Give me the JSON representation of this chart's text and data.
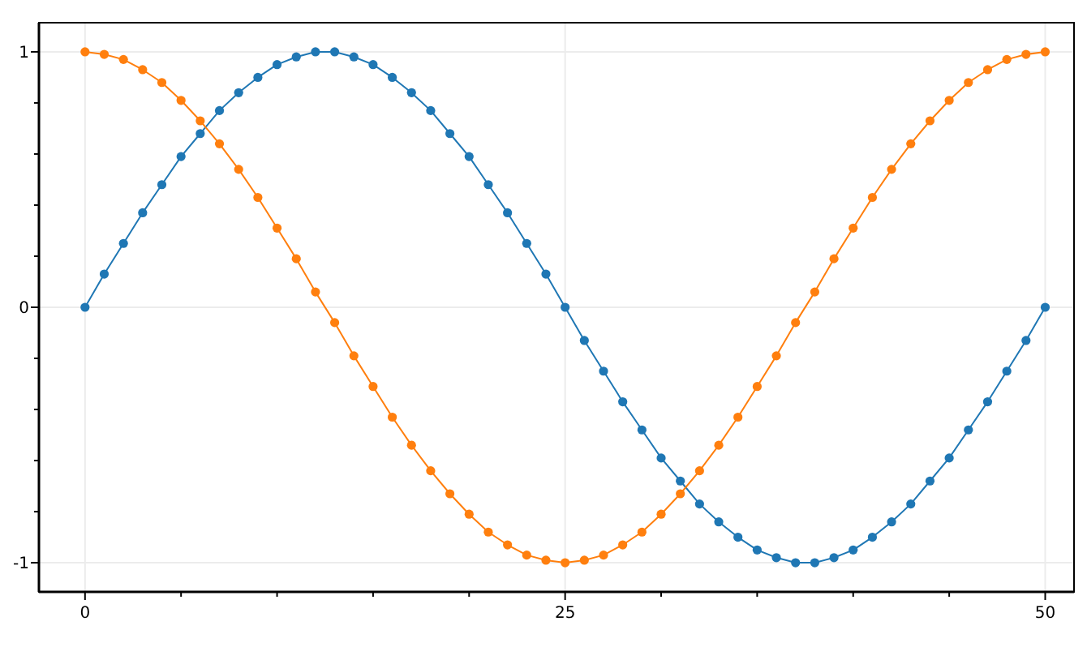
{
  "chart_data": {
    "type": "line",
    "x": [
      0,
      1,
      2,
      3,
      4,
      5,
      6,
      7,
      8,
      9,
      10,
      11,
      12,
      13,
      14,
      15,
      16,
      17,
      18,
      19,
      20,
      21,
      22,
      23,
      24,
      25,
      26,
      27,
      28,
      29,
      30,
      31,
      32,
      33,
      34,
      35,
      36,
      37,
      38,
      39,
      40,
      41,
      42,
      43,
      44,
      45,
      46,
      47,
      48,
      49,
      50
    ],
    "series": [
      {
        "color": "#1f77b4",
        "values": [
          0,
          0.13,
          0.25,
          0.37,
          0.48,
          0.59,
          0.68,
          0.77,
          0.84,
          0.9,
          0.95,
          0.98,
          1,
          1,
          0.98,
          0.95,
          0.9,
          0.84,
          0.77,
          0.68,
          0.59,
          0.48,
          0.37,
          0.25,
          0.13,
          0,
          -0.13,
          -0.25,
          -0.37,
          -0.48,
          -0.59,
          -0.68,
          -0.77,
          -0.84,
          -0.9,
          -0.95,
          -0.98,
          -1,
          -1,
          -0.98,
          -0.95,
          -0.9,
          -0.84,
          -0.77,
          -0.68,
          -0.59,
          -0.48,
          -0.37,
          -0.25,
          -0.13,
          0
        ]
      },
      {
        "color": "#ff7f0e",
        "values": [
          1,
          0.99,
          0.97,
          0.93,
          0.88,
          0.81,
          0.73,
          0.64,
          0.54,
          0.43,
          0.31,
          0.19,
          0.06,
          -0.06,
          -0.19,
          -0.31,
          -0.43,
          -0.54,
          -0.64,
          -0.73,
          -0.81,
          -0.88,
          -0.93,
          -0.97,
          -0.99,
          -1,
          -0.99,
          -0.97,
          -0.93,
          -0.88,
          -0.81,
          -0.73,
          -0.64,
          -0.54,
          -0.43,
          -0.31,
          -0.19,
          -0.06,
          0.06,
          0.19,
          0.31,
          0.43,
          0.54,
          0.64,
          0.73,
          0.81,
          0.88,
          0.93,
          0.97,
          0.99,
          1
        ]
      }
    ],
    "xlim": [
      -2.4,
      51.5
    ],
    "ylim": [
      -1.114,
      1.114
    ],
    "xticks": [
      0,
      {
        "value": 5,
        "label": null
      },
      {
        "value": 10,
        "label": null
      },
      {
        "value": 15,
        "label": null
      },
      {
        "value": 20,
        "label": null
      },
      25,
      {
        "value": 30,
        "label": null
      },
      {
        "value": 35,
        "label": null
      },
      {
        "value": 40,
        "label": null
      },
      {
        "value": 45,
        "label": null
      },
      50
    ],
    "yticks": [
      -1,
      {
        "value": -0.8,
        "label": null
      },
      {
        "value": -0.6,
        "label": null
      },
      {
        "value": -0.4,
        "label": null
      },
      {
        "value": -0.2,
        "label": null
      },
      0,
      {
        "value": 0.2,
        "label": null
      },
      {
        "value": 0.4,
        "label": null
      },
      {
        "value": 0.6,
        "label": null
      },
      {
        "value": 0.8,
        "label": null
      },
      1
    ],
    "grid": true,
    "marker": "circle",
    "line_style": "solid"
  }
}
